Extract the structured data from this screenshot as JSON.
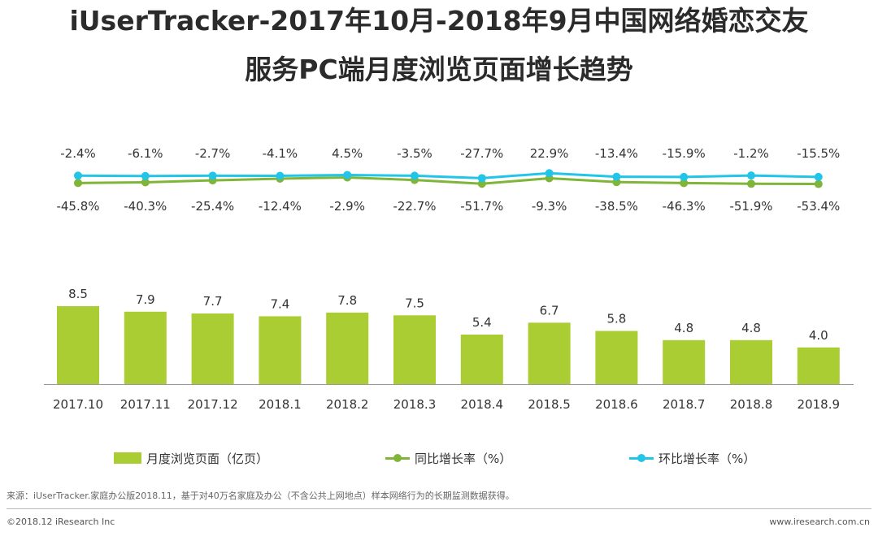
{
  "title_line1": "iUserTracker-2017年10月-2018年9月中国网络婚恋交友",
  "title_line2": "服务PC端月度浏览页面增长趋势",
  "chart_data": {
    "type": "bar+line",
    "categories": [
      "2017.10",
      "2017.11",
      "2017.12",
      "2018.1",
      "2018.2",
      "2018.3",
      "2018.4",
      "2018.5",
      "2018.6",
      "2018.7",
      "2018.8",
      "2018.9"
    ],
    "series": [
      {
        "name": "月度浏览页面（亿页）",
        "type": "bar",
        "values": [
          8.5,
          7.9,
          7.7,
          7.4,
          7.8,
          7.5,
          5.4,
          6.7,
          5.8,
          4.8,
          4.8,
          4.0
        ],
        "labels": [
          "8.5",
          "7.9",
          "7.7",
          "7.4",
          "7.8",
          "7.5",
          "5.4",
          "6.7",
          "5.8",
          "4.8",
          "4.8",
          "4.0"
        ]
      },
      {
        "name": "同比增长率（%）",
        "type": "line",
        "values": [
          -45.8,
          -40.3,
          -25.4,
          -12.4,
          -2.9,
          -22.7,
          -51.7,
          -9.3,
          -38.5,
          -46.3,
          -51.9,
          -53.4
        ],
        "labels": [
          "-45.8%",
          "-40.3%",
          "-25.4%",
          "-12.4%",
          "-2.9%",
          "-22.7%",
          "-51.7%",
          "-9.3%",
          "-38.5%",
          "-46.3%",
          "-51.9%",
          "-53.4%"
        ]
      },
      {
        "name": "环比增长率（%）",
        "type": "line",
        "values": [
          -2.4,
          -6.1,
          -2.7,
          -4.1,
          4.5,
          -3.5,
          -27.7,
          22.9,
          -13.4,
          -15.9,
          -1.2,
          -15.5
        ],
        "labels": [
          "-2.4%",
          "-6.1%",
          "-2.7%",
          "-4.1%",
          "4.5%",
          "-3.5%",
          "-27.7%",
          "22.9%",
          "-13.4%",
          "-15.9%",
          "-1.2%",
          "-15.5%"
        ]
      }
    ],
    "bar_ylim": [
      0,
      11
    ],
    "colors": {
      "bar": "#a9cd32",
      "yoy": "#7fb539",
      "mom": "#22c5e8",
      "axis": "#999999"
    }
  },
  "legend": {
    "bar_label": "月度浏览页面（亿页）",
    "yoy_label": "同比增长率（%）",
    "mom_label": "环比增长率（%）"
  },
  "source": "来源：iUserTracker.家庭办公版2018.11，基于对40万名家庭及办公（不含公共上网地点）样本网络行为的长期监测数据获得。",
  "footer": {
    "copyright": "©2018.12 iResearch Inc",
    "website": "www.iresearch.com.cn"
  }
}
